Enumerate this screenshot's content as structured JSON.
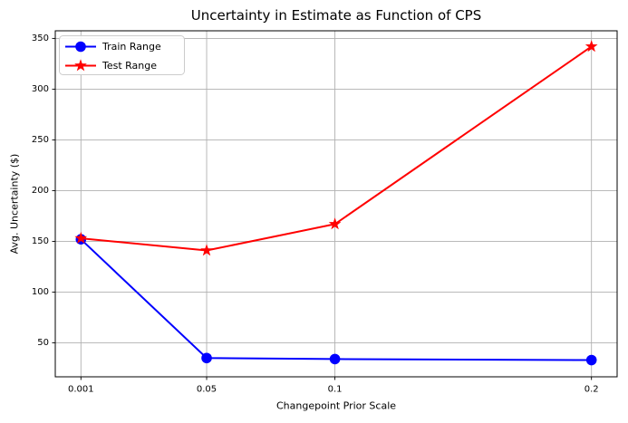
{
  "chart_data": {
    "type": "line",
    "title": "Uncertainty in Estimate as Function of CPS",
    "xlabel": "Changepoint Prior Scale",
    "ylabel": "Avg. Uncertainty ($)",
    "x": [
      0.001,
      0.05,
      0.1,
      0.2
    ],
    "x_tick_labels": [
      "0.001",
      "0.05",
      "0.1",
      "0.2"
    ],
    "y_ticks": [
      50,
      100,
      150,
      200,
      250,
      300,
      350
    ],
    "xlim": [
      -0.009,
      0.21
    ],
    "ylim": [
      16.5,
      357.5
    ],
    "grid": true,
    "legend": {
      "position": "upper left"
    },
    "series": [
      {
        "name": "Train Range",
        "color": "#0000ff",
        "marker": "circle",
        "line_style": "solid",
        "values": [
          152,
          35,
          34,
          33
        ]
      },
      {
        "name": "Test Range",
        "color": "#ff0000",
        "marker": "star",
        "line_style": "solid",
        "values": [
          153,
          141,
          167,
          342
        ]
      }
    ]
  },
  "style": {
    "background": "#ffffff",
    "grid_color": "#b0b0b0",
    "axis_color": "#000000",
    "tick_label_color": "#000000",
    "legend_border_color": "#cccccc",
    "legend_background": "#ffffff"
  }
}
